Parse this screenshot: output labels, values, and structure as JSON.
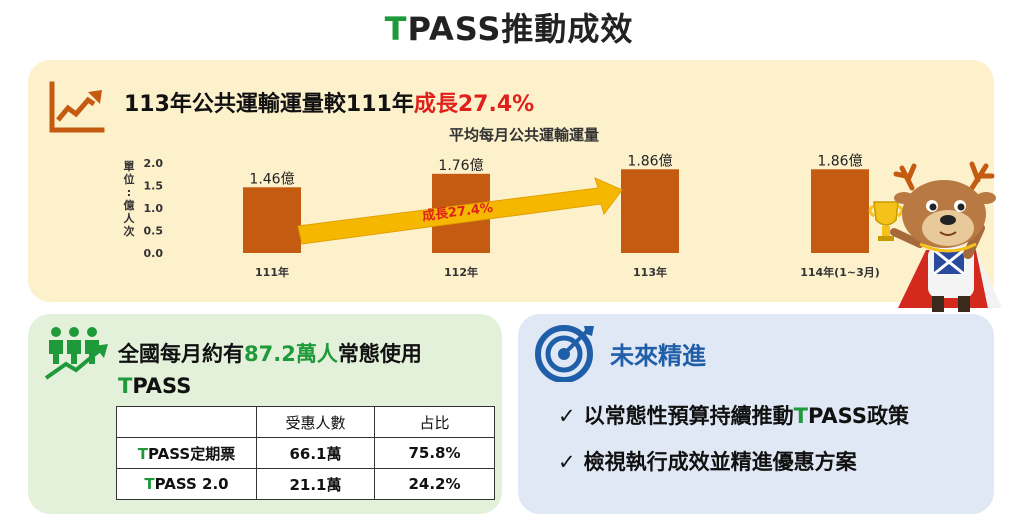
{
  "title": {
    "prefix": "T",
    "rest": "PASS推動成效"
  },
  "growth_panel": {
    "headline_main": "113年公共運輸運量較111年",
    "headline_highlight": "成長27.4%",
    "arrow_label": "成長27.4%",
    "icon": "trend-up-icon",
    "y_axis_label": "單位：億人次"
  },
  "chart_data": {
    "type": "bar",
    "title": "平均每月公共運輸運量",
    "ylabel": "單位：億人次",
    "xlabel": "",
    "categories": [
      "111年",
      "112年",
      "113年",
      "114年(1~3月)"
    ],
    "values": [
      1.46,
      1.76,
      1.86,
      1.86
    ],
    "data_labels": [
      "1.46億",
      "1.76億",
      "1.86億",
      "1.86億"
    ],
    "ylim": [
      0,
      2.0
    ],
    "yticks": [
      "0.0",
      "0.5",
      "1.0",
      "1.5",
      "2.0"
    ],
    "grid": false,
    "bar_color": "#c55a11"
  },
  "users_panel": {
    "line1_pre": "全國每月約有",
    "line1_highlight": "87.2萬人",
    "line1_post": "常態使用",
    "line2_prefix": "T",
    "line2_rest": "PASS",
    "icon": "people-growth-icon",
    "table": {
      "headers": [
        "",
        "受惠人數",
        "占比"
      ],
      "rows": [
        {
          "label_prefix": "T",
          "label_rest": "PASS定期票",
          "count": "66.1萬",
          "share": "75.8%"
        },
        {
          "label_prefix": "T",
          "label_rest": "PASS 2.0",
          "count": "21.1萬",
          "share": "24.2%"
        }
      ]
    }
  },
  "future_panel": {
    "heading": "未來精進",
    "icon": "target-icon",
    "items": [
      {
        "check": "✓",
        "pre": "以常態性預算持續推動",
        "highlight": "T",
        "post": "PASS政策"
      },
      {
        "check": "✓",
        "pre": "檢視執行成效並精進優惠方案",
        "highlight": "",
        "post": ""
      }
    ]
  },
  "colors": {
    "green": "#1f9a3a",
    "red": "#e0201b",
    "orange_bar": "#c55a11",
    "blue": "#1f5ea8",
    "arrow": "#f6b700"
  }
}
